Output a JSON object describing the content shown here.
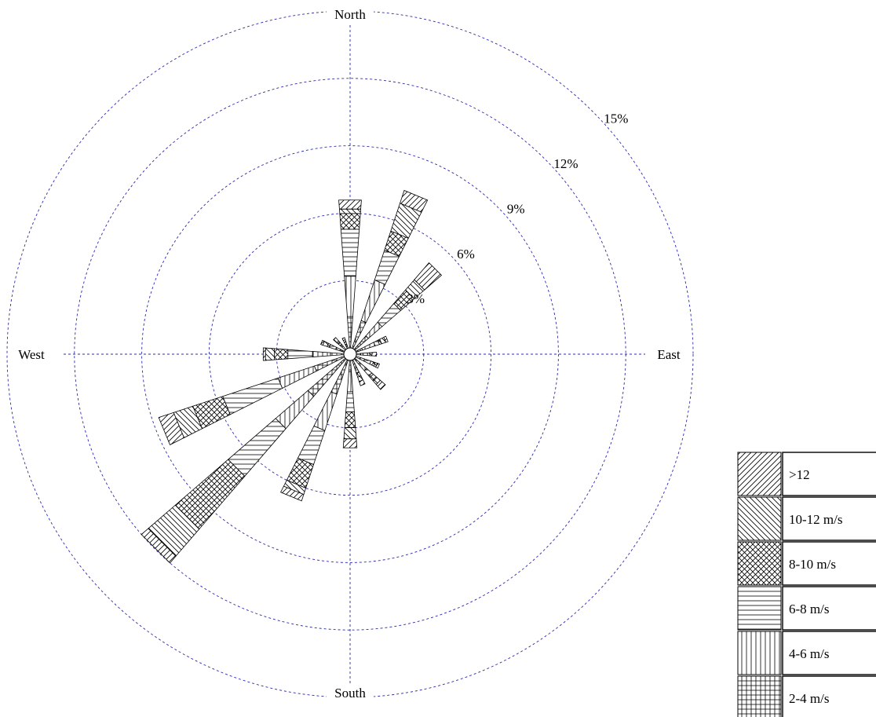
{
  "chart_data": {
    "type": "polar-bar",
    "title": "",
    "directions": [
      "North",
      "East",
      "South",
      "West"
    ],
    "ring_labels": [
      "3%",
      "6%",
      "9%",
      "12%",
      "15%"
    ],
    "rings": [
      3,
      6,
      9,
      12,
      15
    ],
    "rmax": 15,
    "grid": true,
    "legend_position": "bottom-right",
    "sector_bearings": [
      0,
      22.5,
      45,
      67.5,
      90,
      112.5,
      135,
      157.5,
      180,
      202.5,
      225,
      247.5,
      270,
      292.5,
      315,
      337.5
    ],
    "bins": [
      {
        "name": ">12",
        "pattern": "diag-right"
      },
      {
        "name": "10-12 m/s",
        "pattern": "diag-left"
      },
      {
        "name": "8-10 m/s",
        "pattern": "crosshatch"
      },
      {
        "name": "6-8 m/s",
        "pattern": "horizontal"
      },
      {
        "name": "4-6 m/s",
        "pattern": "vertical"
      },
      {
        "name": "2-4 m/s",
        "pattern": "grid"
      }
    ],
    "stack_order": [
      "2-4 m/s",
      "4-6 m/s",
      "6-8 m/s",
      "8-10 m/s",
      "10-12 m/s",
      ">12"
    ],
    "cumulative": [
      [
        1.4,
        3.2,
        5.3,
        6.0,
        6.2,
        6.6
      ],
      [
        1.3,
        3.2,
        4.6,
        5.5,
        6.8,
        7.4
      ],
      [
        0.8,
        1.6,
        2.7,
        3.5,
        4.1,
        5.1
      ],
      [
        0.3,
        0.9,
        1.1,
        1.2,
        1.4,
        1.5
      ],
      [
        0.2,
        0.3,
        0.5,
        0.6,
        0.7,
        0.9
      ],
      [
        0.2,
        0.4,
        0.7,
        0.9,
        1.0,
        1.1
      ],
      [
        0.3,
        0.7,
        1.0,
        1.3,
        1.5,
        1.8
      ],
      [
        0.2,
        0.4,
        0.6,
        0.8,
        1.0,
        1.2
      ],
      [
        0.5,
        1.4,
        2.3,
        3.0,
        3.5,
        3.9
      ],
      [
        1.6,
        3.3,
        4.9,
        6.0,
        6.3,
        6.6
      ],
      [
        2.2,
        4.1,
        6.9,
        10.0,
        11.6,
        12.0
      ],
      [
        1.4,
        3.1,
        5.7,
        7.1,
        8.0,
        8.7
      ],
      [
        0.6,
        1.4,
        2.5,
        3.1,
        3.5,
        3.6
      ],
      [
        0.2,
        0.4,
        0.7,
        0.8,
        1.0,
        1.1
      ],
      [
        0.2,
        0.3,
        0.4,
        0.5,
        0.7,
        0.7
      ],
      [
        0.1,
        0.2,
        0.3,
        0.4,
        0.4,
        0.5
      ]
    ]
  }
}
